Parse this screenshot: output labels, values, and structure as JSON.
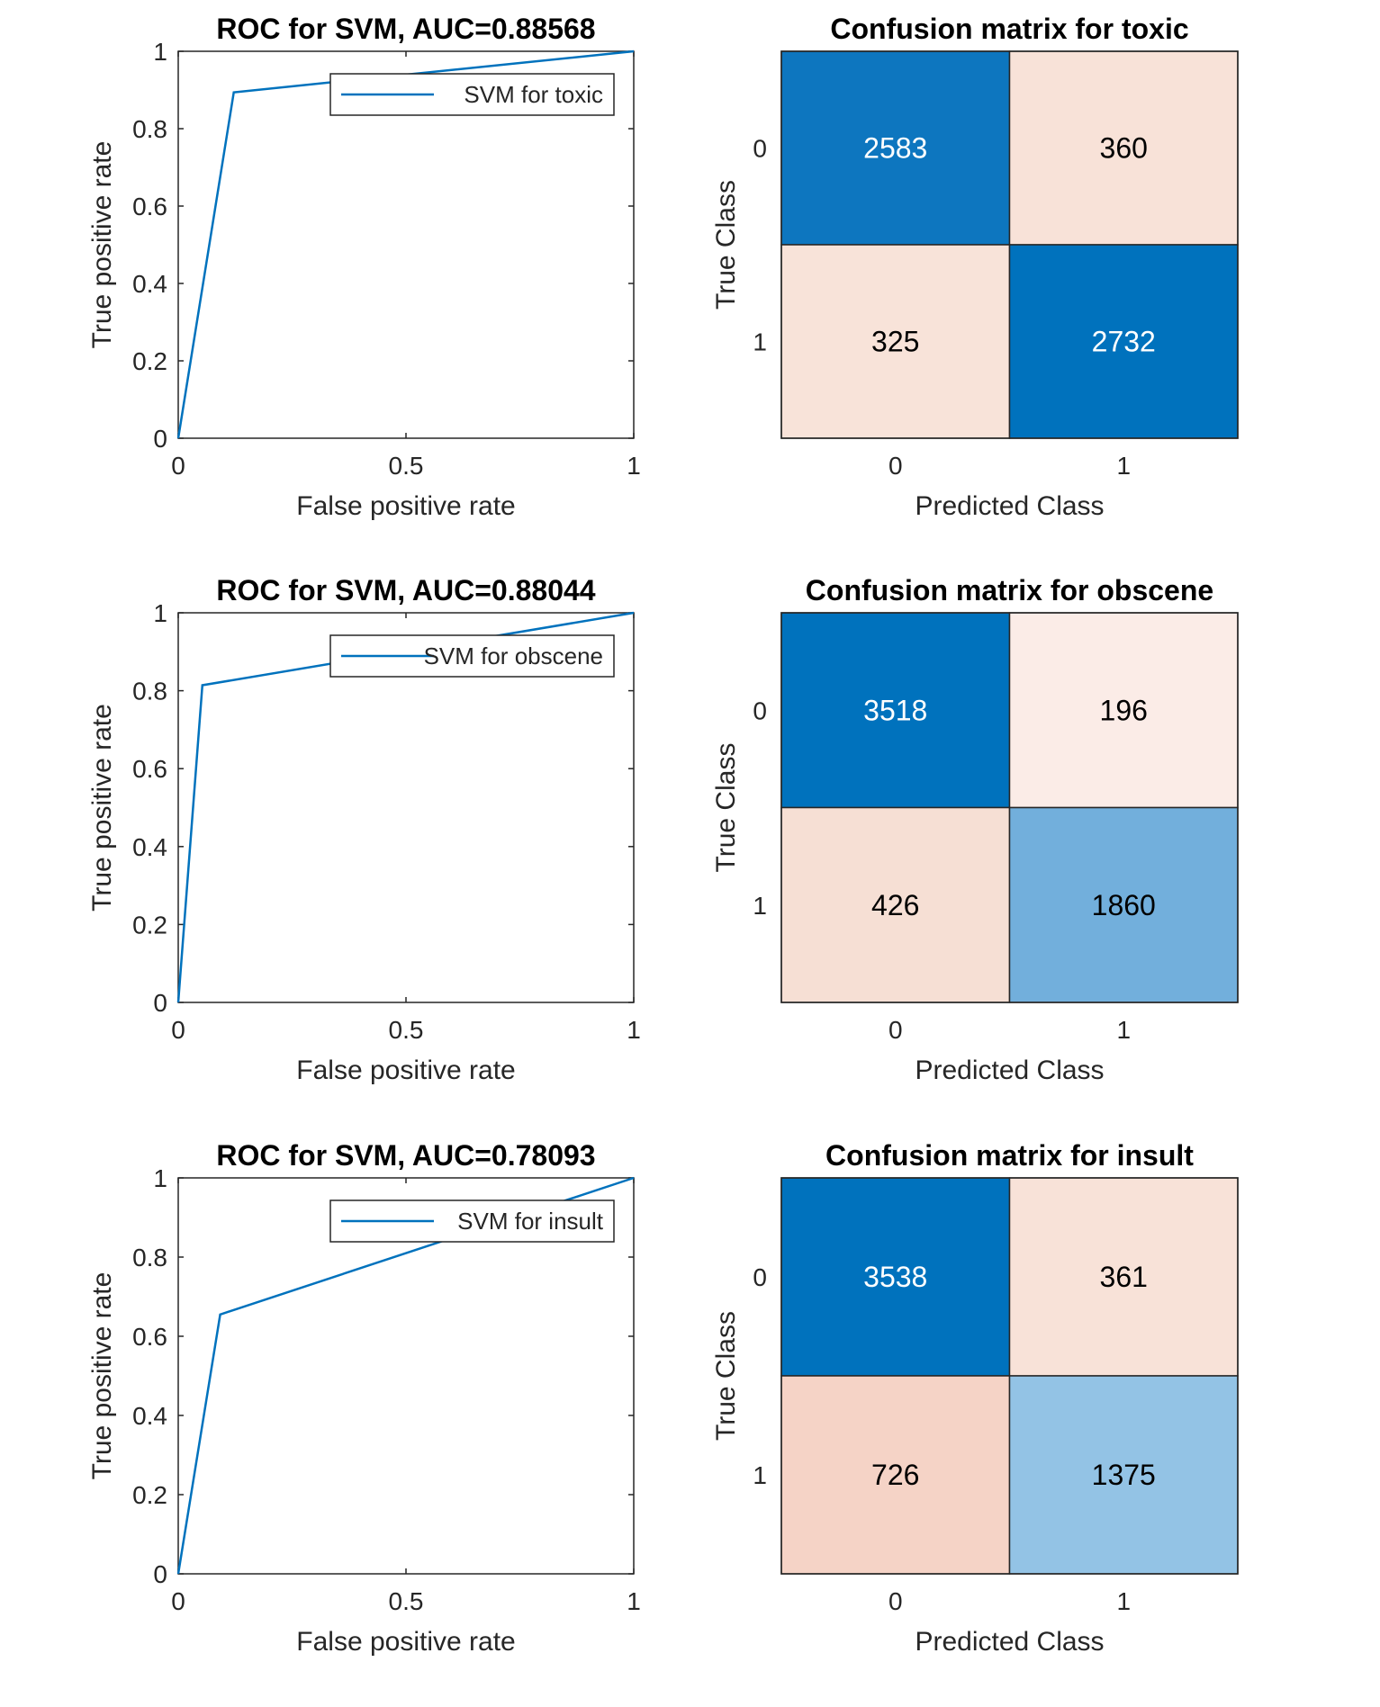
{
  "chart_data": [
    {
      "type": "line",
      "title": "ROC for SVM, AUC=0.88568",
      "xlabel": "False positive rate",
      "ylabel": "True positive rate",
      "xlim": [
        0,
        1
      ],
      "ylim": [
        0,
        1
      ],
      "xticks": [
        "0",
        "0.5",
        "1"
      ],
      "yticks": [
        "0",
        "0.2",
        "0.4",
        "0.6",
        "0.8",
        "1"
      ],
      "legend_position": "top-right",
      "series": [
        {
          "name": "SVM for toxic",
          "x": [
            0,
            0.122,
            1
          ],
          "y": [
            0,
            0.894,
            1
          ],
          "color": "#0072BD"
        }
      ]
    },
    {
      "type": "heatmap",
      "title": "Confusion matrix for toxic",
      "xlabel": "Predicted Class",
      "ylabel": "True Class",
      "x_categories": [
        "0",
        "1"
      ],
      "y_categories": [
        "0",
        "1"
      ],
      "values": [
        [
          2583,
          360
        ],
        [
          325,
          2732
        ]
      ],
      "colors": [
        [
          "#0d76bf",
          "#f8e2d8"
        ],
        [
          "#f8e3d9",
          "#0072bd"
        ]
      ]
    },
    {
      "type": "line",
      "title": "ROC for SVM, AUC=0.88044",
      "xlabel": "False positive rate",
      "ylabel": "True positive rate",
      "xlim": [
        0,
        1
      ],
      "ylim": [
        0,
        1
      ],
      "xticks": [
        "0",
        "0.5",
        "1"
      ],
      "yticks": [
        "0",
        "0.2",
        "0.4",
        "0.6",
        "0.8",
        "1"
      ],
      "legend_position": "top-right",
      "series": [
        {
          "name": "SVM for obscene",
          "x": [
            0,
            0.053,
            1
          ],
          "y": [
            0,
            0.814,
            1
          ],
          "color": "#0072BD"
        }
      ]
    },
    {
      "type": "heatmap",
      "title": "Confusion matrix for obscene",
      "xlabel": "Predicted Class",
      "ylabel": "True Class",
      "x_categories": [
        "0",
        "1"
      ],
      "y_categories": [
        "0",
        "1"
      ],
      "values": [
        [
          3518,
          196
        ],
        [
          426,
          1860
        ]
      ],
      "colors": [
        [
          "#0072bd",
          "#fbece7"
        ],
        [
          "#f6dfd4",
          "#72afdc"
        ]
      ]
    },
    {
      "type": "line",
      "title": "ROC for SVM, AUC=0.78093",
      "xlabel": "False positive rate",
      "ylabel": "True positive rate",
      "xlim": [
        0,
        1
      ],
      "ylim": [
        0,
        1
      ],
      "xticks": [
        "0",
        "0.5",
        "1"
      ],
      "yticks": [
        "0",
        "0.2",
        "0.4",
        "0.6",
        "0.8",
        "1"
      ],
      "legend_position": "top-right",
      "series": [
        {
          "name": "SVM for insult",
          "x": [
            0,
            0.092,
            1
          ],
          "y": [
            0,
            0.655,
            1
          ],
          "color": "#0072BD"
        }
      ]
    },
    {
      "type": "heatmap",
      "title": "Confusion matrix for insult",
      "xlabel": "Predicted Class",
      "ylabel": "True Class",
      "x_categories": [
        "0",
        "1"
      ],
      "y_categories": [
        "0",
        "1"
      ],
      "values": [
        [
          3538,
          361
        ],
        [
          726,
          1375
        ]
      ],
      "colors": [
        [
          "#0072bd",
          "#f8e2d8"
        ],
        [
          "#f5d3c6",
          "#93c3e5"
        ]
      ]
    }
  ]
}
